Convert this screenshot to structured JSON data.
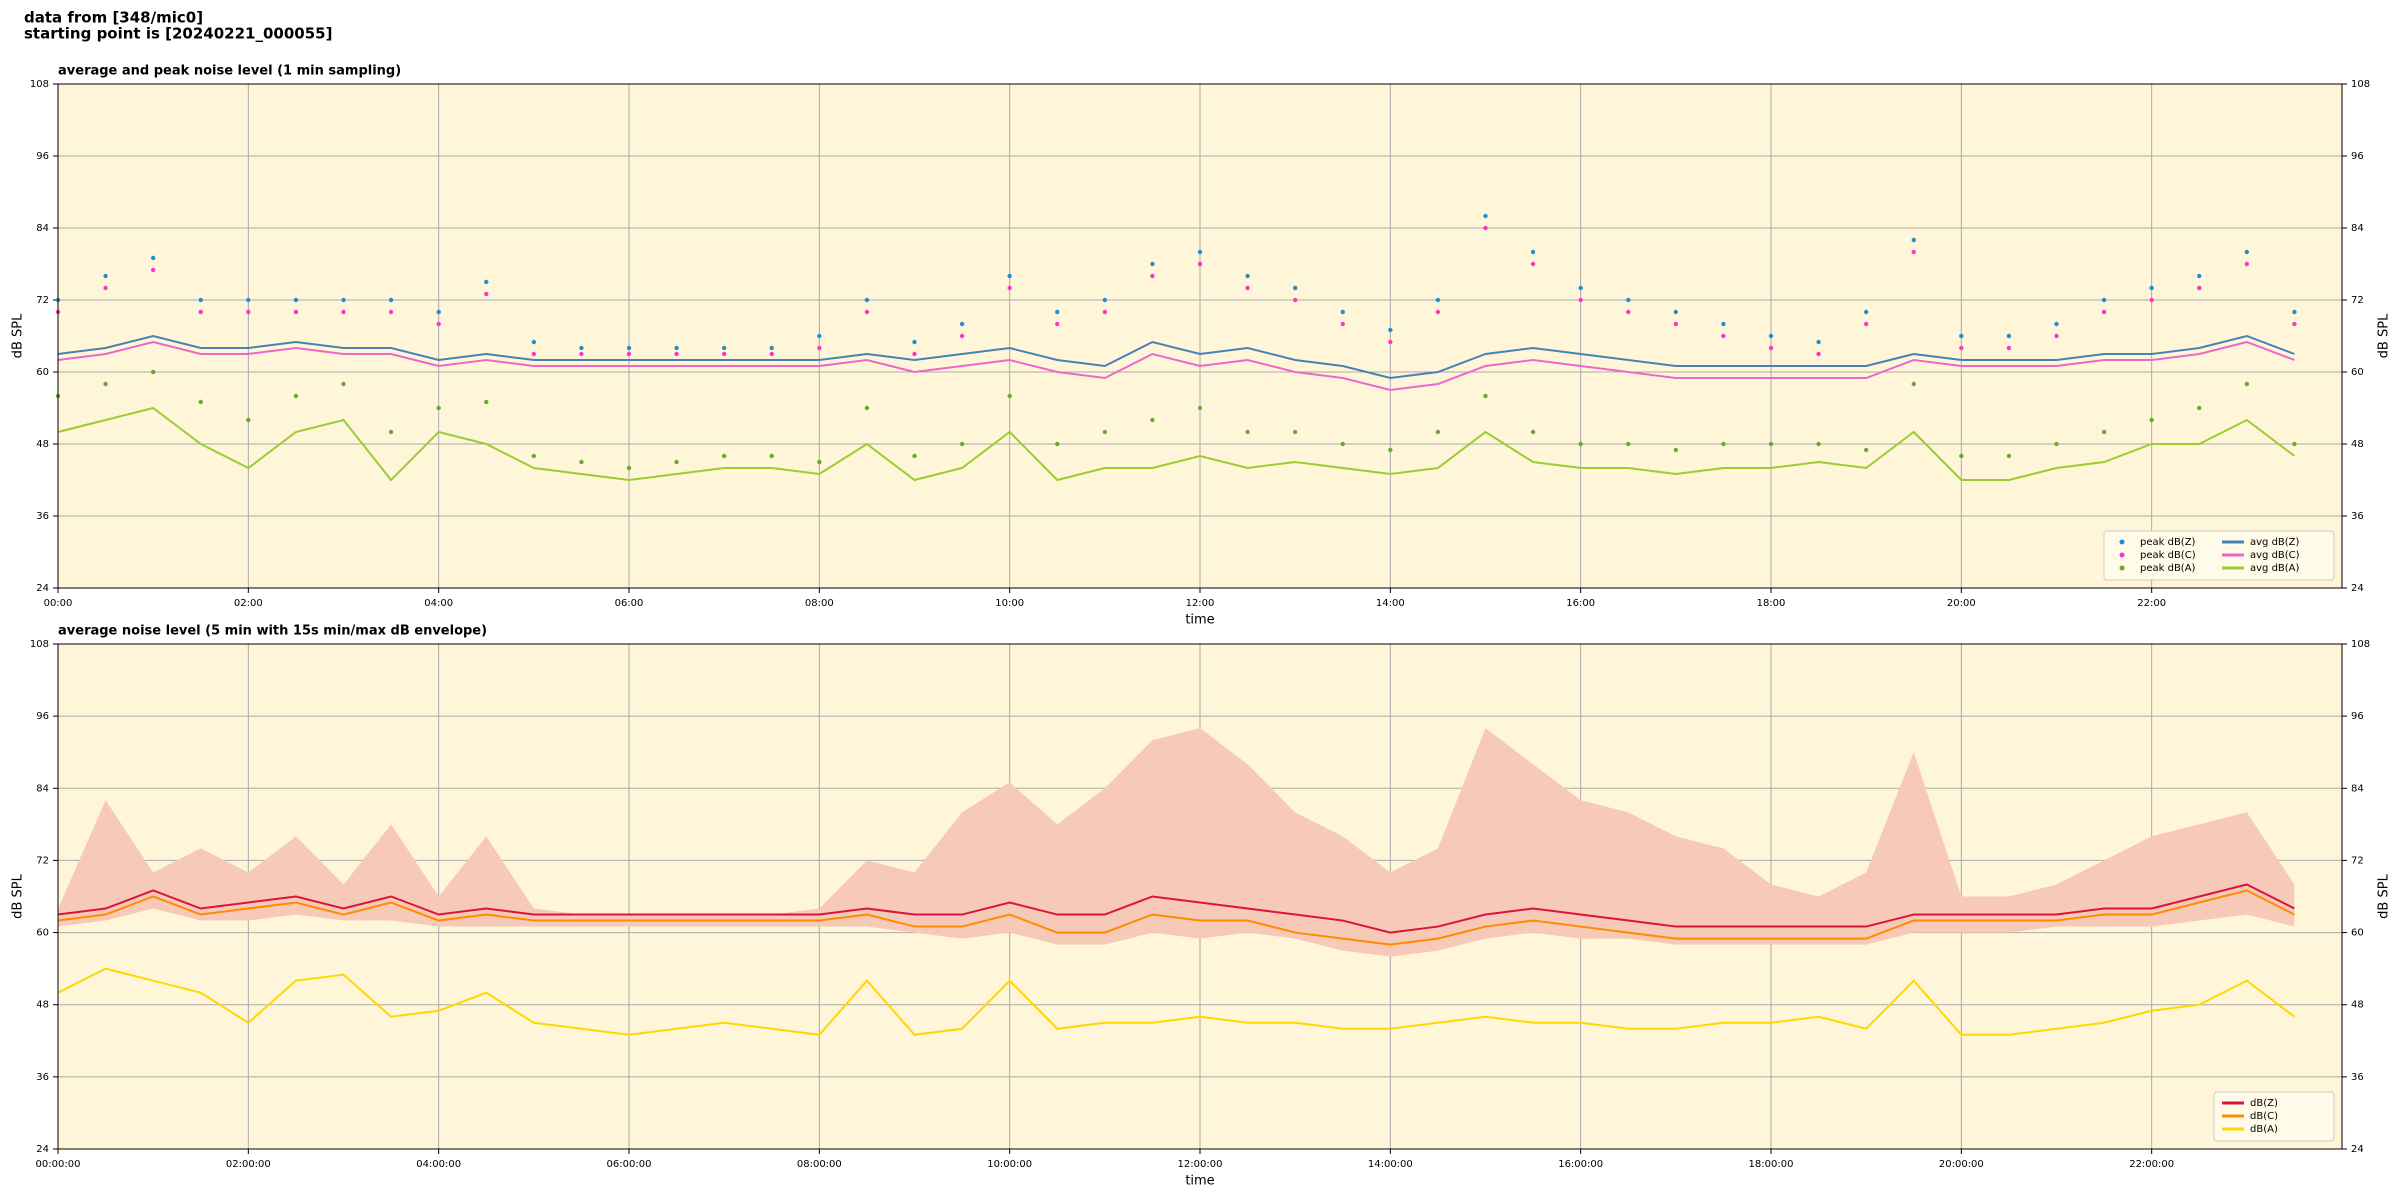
{
  "header": {
    "lines": [
      "data from [348/mic0]",
      "starting point is [20240221_000055]"
    ]
  },
  "chart_data": [
    {
      "type": "line",
      "title": "average and peak noise level (1 min sampling)",
      "xlabel": "time",
      "ylabel": "dB SPL",
      "x": [
        0,
        0.5,
        1,
        1.5,
        2,
        2.5,
        3,
        3.5,
        4,
        4.5,
        5,
        5.5,
        6,
        6.5,
        7,
        7.5,
        8,
        8.5,
        9,
        9.5,
        10,
        10.5,
        11,
        11.5,
        12,
        12.5,
        13,
        13.5,
        14,
        14.5,
        15,
        15.5,
        16,
        16.5,
        17,
        17.5,
        18,
        18.5,
        19,
        19.5,
        20,
        20.5,
        21,
        21.5,
        22,
        22.5,
        23,
        23.5
      ],
      "xlim": [
        0,
        24
      ],
      "xticks": [
        {
          "value": 0,
          "label": "00:00"
        },
        {
          "value": 2,
          "label": "02:00"
        },
        {
          "value": 4,
          "label": "04:00"
        },
        {
          "value": 6,
          "label": "06:00"
        },
        {
          "value": 8,
          "label": "08:00"
        },
        {
          "value": 10,
          "label": "10:00"
        },
        {
          "value": 12,
          "label": "12:00"
        },
        {
          "value": 14,
          "label": "14:00"
        },
        {
          "value": 16,
          "label": "16:00"
        },
        {
          "value": 18,
          "label": "18:00"
        },
        {
          "value": 20,
          "label": "20:00"
        },
        {
          "value": 22,
          "label": "22:00"
        }
      ],
      "ylim": [
        24,
        108
      ],
      "yticks": [
        24,
        36,
        48,
        60,
        72,
        84,
        96,
        108
      ],
      "grid": true,
      "legend": "lower right",
      "series": [
        {
          "name": "peak dB(Z)",
          "mode": "markers",
          "color": "#1f8fd0",
          "values": [
            72,
            76,
            79,
            72,
            72,
            72,
            72,
            72,
            70,
            75,
            65,
            64,
            64,
            64,
            64,
            64,
            66,
            72,
            65,
            68,
            76,
            70,
            72,
            78,
            80,
            76,
            74,
            70,
            67,
            72,
            86,
            80,
            74,
            72,
            70,
            68,
            66,
            65,
            70,
            82,
            66,
            66,
            68,
            72,
            74,
            76,
            80,
            70
          ]
        },
        {
          "name": "peak dB(C)",
          "mode": "markers",
          "color": "#ff33cc",
          "values": [
            70,
            74,
            77,
            70,
            70,
            70,
            70,
            70,
            68,
            73,
            63,
            63,
            63,
            63,
            63,
            63,
            64,
            70,
            63,
            66,
            74,
            68,
            70,
            76,
            78,
            74,
            72,
            68,
            65,
            70,
            84,
            78,
            72,
            70,
            68,
            66,
            64,
            63,
            68,
            80,
            64,
            64,
            66,
            70,
            72,
            74,
            78,
            68
          ]
        },
        {
          "name": "peak dB(A)",
          "mode": "markers",
          "color": "#66aa33",
          "values": [
            56,
            58,
            60,
            55,
            52,
            56,
            58,
            50,
            54,
            55,
            46,
            45,
            44,
            45,
            46,
            46,
            45,
            54,
            46,
            48,
            56,
            48,
            50,
            52,
            54,
            50,
            50,
            48,
            47,
            50,
            56,
            50,
            48,
            48,
            47,
            48,
            48,
            48,
            47,
            58,
            46,
            46,
            48,
            50,
            52,
            54,
            58,
            48
          ]
        },
        {
          "name": "avg dB(Z)",
          "mode": "line",
          "color": "#4682b4",
          "values": [
            63,
            64,
            66,
            64,
            64,
            65,
            64,
            64,
            62,
            63,
            62,
            62,
            62,
            62,
            62,
            62,
            62,
            63,
            62,
            63,
            64,
            62,
            61,
            65,
            63,
            64,
            62,
            61,
            59,
            60,
            63,
            64,
            63,
            62,
            61,
            61,
            61,
            61,
            61,
            63,
            62,
            62,
            62,
            63,
            63,
            64,
            66,
            63
          ]
        },
        {
          "name": "avg dB(C)",
          "mode": "line",
          "color": "#ee66cc",
          "values": [
            62,
            63,
            65,
            63,
            63,
            64,
            63,
            63,
            61,
            62,
            61,
            61,
            61,
            61,
            61,
            61,
            61,
            62,
            60,
            61,
            62,
            60,
            59,
            63,
            61,
            62,
            60,
            59,
            57,
            58,
            61,
            62,
            61,
            60,
            59,
            59,
            59,
            59,
            59,
            62,
            61,
            61,
            61,
            62,
            62,
            63,
            65,
            62
          ]
        },
        {
          "name": "avg dB(A)",
          "mode": "line",
          "color": "#9acd32",
          "values": [
            50,
            52,
            54,
            48,
            44,
            50,
            52,
            42,
            50,
            48,
            44,
            43,
            42,
            43,
            44,
            44,
            43,
            48,
            42,
            44,
            50,
            42,
            44,
            44,
            46,
            44,
            45,
            44,
            43,
            44,
            50,
            45,
            44,
            44,
            43,
            44,
            44,
            45,
            44,
            50,
            42,
            42,
            44,
            45,
            48,
            48,
            52,
            46
          ]
        }
      ]
    },
    {
      "type": "line",
      "title": "average noise level (5 min with 15s min/max dB envelope)",
      "xlabel": "time",
      "ylabel": "dB SPL",
      "x": [
        0,
        0.5,
        1,
        1.5,
        2,
        2.5,
        3,
        3.5,
        4,
        4.5,
        5,
        5.5,
        6,
        6.5,
        7,
        7.5,
        8,
        8.5,
        9,
        9.5,
        10,
        10.5,
        11,
        11.5,
        12,
        12.5,
        13,
        13.5,
        14,
        14.5,
        15,
        15.5,
        16,
        16.5,
        17,
        17.5,
        18,
        18.5,
        19,
        19.5,
        20,
        20.5,
        21,
        21.5,
        22,
        22.5,
        23,
        23.5
      ],
      "xlim": [
        0,
        24
      ],
      "xticks": [
        {
          "value": 0,
          "label": "00:00:00"
        },
        {
          "value": 2,
          "label": "02:00:00"
        },
        {
          "value": 4,
          "label": "04:00:00"
        },
        {
          "value": 6,
          "label": "06:00:00"
        },
        {
          "value": 8,
          "label": "08:00:00"
        },
        {
          "value": 10,
          "label": "10:00:00"
        },
        {
          "value": 12,
          "label": "12:00:00"
        },
        {
          "value": 14,
          "label": "14:00:00"
        },
        {
          "value": 16,
          "label": "16:00:00"
        },
        {
          "value": 18,
          "label": "18:00:00"
        },
        {
          "value": 20,
          "label": "20:00:00"
        },
        {
          "value": 22,
          "label": "22:00:00"
        }
      ],
      "ylim": [
        24,
        108
      ],
      "yticks": [
        24,
        36,
        48,
        60,
        72,
        84,
        96,
        108
      ],
      "grid": true,
      "legend": "lower right",
      "envelope": {
        "color": "#f6c9b8",
        "max": [
          64,
          82,
          70,
          74,
          70,
          76,
          68,
          78,
          66,
          76,
          64,
          63,
          63,
          63,
          63,
          63,
          64,
          72,
          70,
          80,
          85,
          78,
          84,
          92,
          94,
          88,
          80,
          76,
          70,
          74,
          94,
          88,
          82,
          80,
          76,
          74,
          68,
          66,
          70,
          90,
          66,
          66,
          68,
          72,
          76,
          78,
          80,
          68
        ],
        "min": [
          61,
          62,
          64,
          62,
          62,
          63,
          62,
          62,
          61,
          61,
          61,
          61,
          61,
          61,
          61,
          61,
          61,
          61,
          60,
          59,
          60,
          58,
          58,
          60,
          59,
          60,
          59,
          57,
          56,
          57,
          59,
          60,
          59,
          59,
          58,
          58,
          58,
          58,
          58,
          60,
          60,
          60,
          61,
          61,
          61,
          62,
          63,
          61
        ]
      },
      "series": [
        {
          "name": "dB(Z)",
          "mode": "line",
          "color": "#dc143c",
          "values": [
            63,
            64,
            67,
            64,
            65,
            66,
            64,
            66,
            63,
            64,
            63,
            63,
            63,
            63,
            63,
            63,
            63,
            64,
            63,
            63,
            65,
            63,
            63,
            66,
            65,
            64,
            63,
            62,
            60,
            61,
            63,
            64,
            63,
            62,
            61,
            61,
            61,
            61,
            61,
            63,
            63,
            63,
            63,
            64,
            64,
            66,
            68,
            64
          ]
        },
        {
          "name": "dB(C)",
          "mode": "line",
          "color": "#ff8c00",
          "values": [
            62,
            63,
            66,
            63,
            64,
            65,
            63,
            65,
            62,
            63,
            62,
            62,
            62,
            62,
            62,
            62,
            62,
            63,
            61,
            61,
            63,
            60,
            60,
            63,
            62,
            62,
            60,
            59,
            58,
            59,
            61,
            62,
            61,
            60,
            59,
            59,
            59,
            59,
            59,
            62,
            62,
            62,
            62,
            63,
            63,
            65,
            67,
            63
          ]
        },
        {
          "name": "dB(A)",
          "mode": "line",
          "color": "#ffd700",
          "values": [
            50,
            54,
            52,
            50,
            45,
            52,
            53,
            46,
            47,
            50,
            45,
            44,
            43,
            44,
            45,
            44,
            43,
            52,
            43,
            44,
            52,
            44,
            45,
            45,
            46,
            45,
            45,
            44,
            44,
            45,
            46,
            45,
            45,
            44,
            44,
            45,
            45,
            46,
            44,
            52,
            43,
            43,
            44,
            45,
            47,
            48,
            52,
            46
          ]
        }
      ]
    }
  ]
}
